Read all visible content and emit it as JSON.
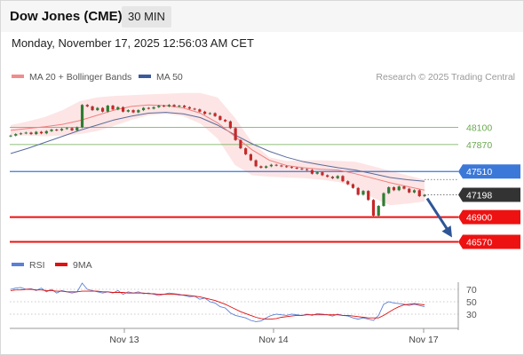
{
  "header": {
    "title": "Dow Jones (CME)",
    "timeframe": "30 MIN"
  },
  "datetime": "Monday, November 17, 2025 12:56:03 AM CET",
  "credit": "Research © 2025 Trading Central",
  "legend": [
    {
      "label": "MA 20 + Bollinger Bands",
      "color": "#f08c8c"
    },
    {
      "label": "MA 50",
      "color": "#3a5a9c"
    }
  ],
  "rsi_legend": [
    {
      "label": "RSI",
      "color": "#5b7fd6"
    },
    {
      "label": "9MA",
      "color": "#e01010"
    }
  ],
  "colors": {
    "resistance": "#6aa84f",
    "pivot": "#3c78d8",
    "support": "#ee1111",
    "current": "#333333",
    "arrow": "#2f5597",
    "band": "#fde0e0",
    "ma20": "#f08080",
    "ma50": "#5a6b9c"
  },
  "chart_data": [
    {
      "type": "line",
      "title": "Dow Jones (CME)",
      "x_ticks": [
        "Nov 13",
        "Nov 14",
        "Nov 17"
      ],
      "ylim": [
        46400,
        48650
      ],
      "levels": [
        {
          "value": 48100,
          "label": "48100",
          "kind": "resistance"
        },
        {
          "value": 47870,
          "label": "47870",
          "kind": "resistance"
        },
        {
          "value": 47510,
          "label": "47510",
          "kind": "pivot"
        },
        {
          "value": 47198,
          "label": "47198",
          "kind": "current"
        },
        {
          "value": 46900,
          "label": "46900",
          "kind": "support"
        },
        {
          "value": 46570,
          "label": "46570",
          "kind": "support"
        }
      ],
      "arrow": {
        "from": 47198,
        "to": 46570,
        "direction": "down"
      },
      "series": [
        {
          "name": "MA 20 + Bollinger Bands",
          "kind": "ma",
          "values": [
            48060,
            48085,
            48110,
            48140,
            48190,
            48260,
            48330,
            48380,
            48400,
            48390,
            48360,
            48290,
            48160,
            47980,
            47800,
            47660,
            47590,
            47560,
            47540,
            47530,
            47480,
            47420,
            47360,
            47310,
            47260
          ]
        },
        {
          "name": "MA 50",
          "kind": "ma",
          "values": [
            47750,
            47820,
            47900,
            47980,
            48060,
            48130,
            48200,
            48250,
            48290,
            48300,
            48280,
            48230,
            48130,
            48000,
            47880,
            47780,
            47700,
            47640,
            47600,
            47560,
            47530,
            47480,
            47430,
            47400,
            47380
          ]
        },
        {
          "name": "Bollinger upper",
          "kind": "band",
          "values": [
            48130,
            48180,
            48240,
            48330,
            48450,
            48500,
            48520,
            48530,
            48540,
            48550,
            48560,
            48560,
            48500,
            48230,
            47900,
            47700,
            47650,
            47660,
            47660,
            47650,
            47640,
            47580,
            47520,
            47460,
            47400
          ]
        },
        {
          "name": "Bollinger lower",
          "kind": "band",
          "values": [
            47990,
            47990,
            47980,
            47990,
            48010,
            48050,
            48120,
            48200,
            48260,
            48280,
            48250,
            48150,
            47950,
            47600,
            47460,
            47440,
            47430,
            47420,
            47400,
            47370,
            47300,
            47160,
            47060,
            47080,
            47110
          ]
        },
        {
          "name": "Price",
          "kind": "price",
          "values": [
            47990,
            48010,
            48020,
            48030,
            48010,
            48040,
            48020,
            48050,
            48070,
            48060,
            48080,
            48090,
            48060,
            48100,
            48400,
            48380,
            48330,
            48360,
            48310,
            48390,
            48340,
            48370,
            48310,
            48330,
            48300,
            48330,
            48360,
            48350,
            48370,
            48390,
            48380,
            48400,
            48380,
            48390,
            48370,
            48350,
            48340,
            48310,
            48280,
            48290,
            48250,
            48200,
            48180,
            48090,
            47930,
            47820,
            47740,
            47660,
            47580,
            47560,
            47580,
            47600,
            47590,
            47580,
            47570,
            47560,
            47550,
            47540,
            47530,
            47480,
            47500,
            47460,
            47440,
            47420,
            47450,
            47380,
            47340,
            47290,
            47200,
            47250,
            47130,
            46920,
            47050,
            47220,
            47300,
            47260,
            47310,
            47280,
            47230,
            47260,
            47180,
            47198
          ]
        }
      ]
    },
    {
      "type": "line",
      "title": "RSI",
      "y_ticks": [
        70,
        50,
        30
      ],
      "ylim": [
        12,
        88
      ],
      "series": [
        {
          "name": "RSI",
          "values": [
            70,
            72,
            73,
            70,
            71,
            68,
            72,
            66,
            70,
            64,
            68,
            66,
            64,
            66,
            80,
            70,
            68,
            66,
            64,
            66,
            64,
            68,
            62,
            66,
            64,
            66,
            63,
            64,
            62,
            60,
            62,
            64,
            63,
            62,
            60,
            58,
            59,
            54,
            56,
            50,
            48,
            42,
            40,
            32,
            28,
            26,
            24,
            20,
            18,
            19,
            24,
            28,
            30,
            29,
            28,
            30,
            29,
            28,
            30,
            28,
            31,
            30,
            29,
            27,
            30,
            28,
            27,
            24,
            22,
            24,
            22,
            20,
            28,
            46,
            50,
            48,
            47,
            46,
            44,
            46,
            44,
            42
          ]
        },
        {
          "name": "9MA",
          "values": [
            68,
            69,
            69,
            70,
            70,
            69,
            69,
            68,
            68,
            67,
            67,
            66,
            66,
            66,
            67,
            67,
            67,
            67,
            66,
            66,
            65,
            65,
            65,
            64,
            64,
            64,
            64,
            63,
            63,
            62,
            62,
            62,
            62,
            61,
            61,
            60,
            59,
            58,
            56,
            54,
            52,
            49,
            46,
            42,
            38,
            34,
            31,
            28,
            25,
            23,
            22,
            22,
            23,
            25,
            26,
            27,
            28,
            28,
            29,
            29,
            29,
            29,
            29,
            29,
            29,
            28,
            28,
            27,
            26,
            25,
            24,
            24,
            24,
            28,
            33,
            38,
            42,
            45,
            46,
            47,
            46,
            45
          ]
        }
      ]
    }
  ]
}
